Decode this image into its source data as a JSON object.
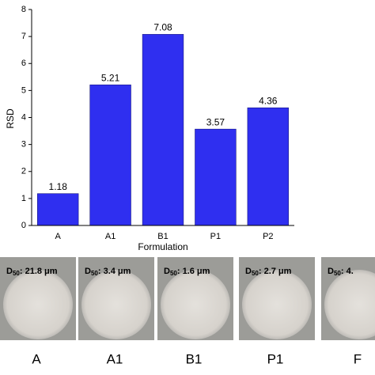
{
  "chart_data": {
    "type": "bar",
    "x_label": "Formulation",
    "y_label": "RSD",
    "categories": [
      "A",
      "A1",
      "B1",
      "P1",
      "P2"
    ],
    "values": [
      1.18,
      5.21,
      7.08,
      3.57,
      4.36
    ],
    "color": "#2f2ff0",
    "ylim": [
      0,
      8
    ],
    "yticks": [
      0,
      1,
      2,
      3,
      4,
      5,
      6,
      7,
      8
    ]
  },
  "photos": [
    {
      "d_prefix": "D",
      "d_sub": "50",
      "d_text": ": 21.8 μm",
      "caption": "A"
    },
    {
      "d_prefix": "D",
      "d_sub": "50",
      "d_text": ": 3.4 μm",
      "caption": "A1"
    },
    {
      "d_prefix": "D",
      "d_sub": "50",
      "d_text": ": 1.6 μm",
      "caption": "B1"
    },
    {
      "d_prefix": "D",
      "d_sub": "50",
      "d_text": ": 2.7 μm",
      "caption": "P1"
    },
    {
      "d_prefix": "D",
      "d_sub": "50",
      "d_text": ": 4.",
      "caption": "F"
    }
  ]
}
